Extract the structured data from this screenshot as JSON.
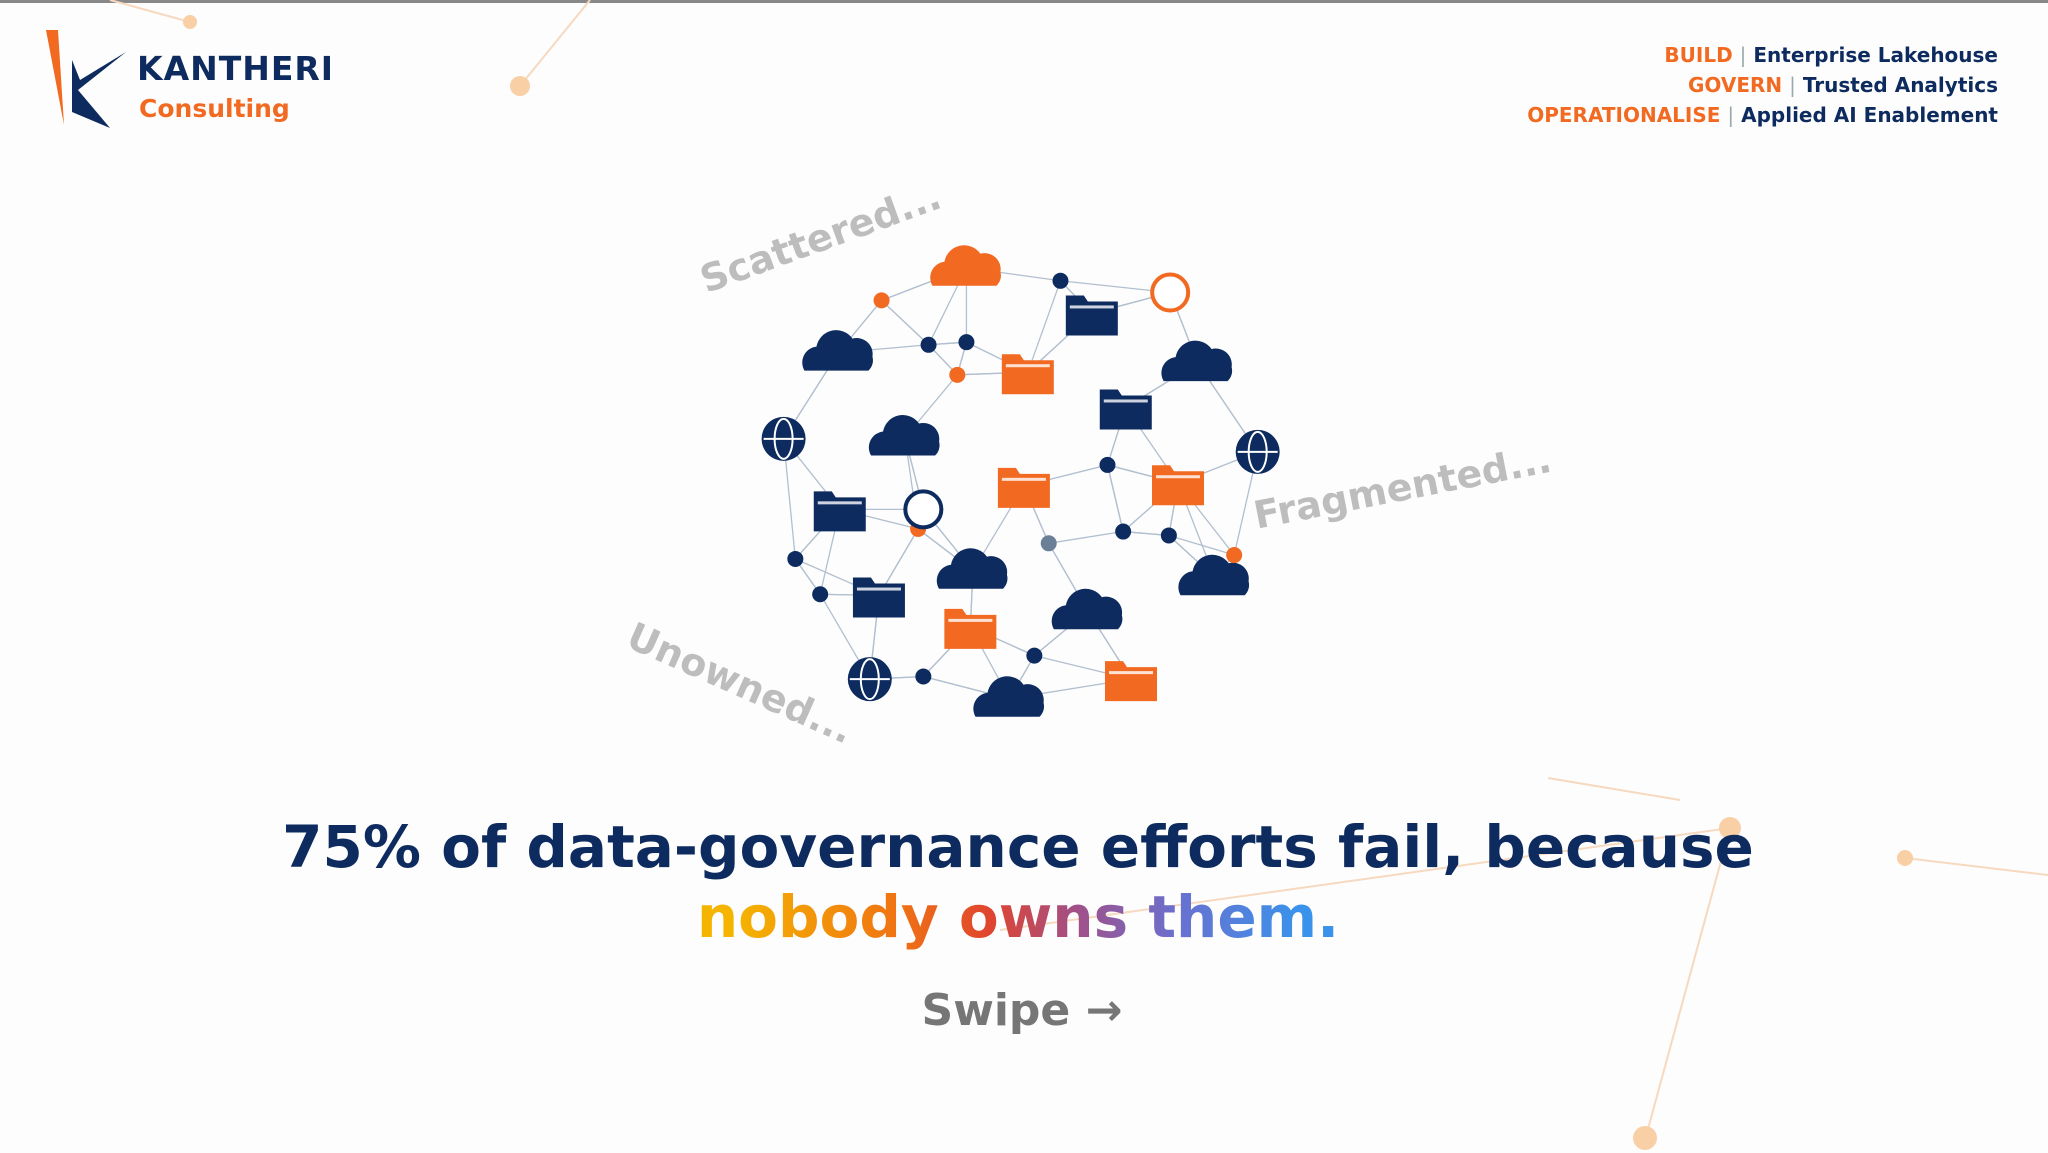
{
  "brand": {
    "name": "KANTHERI",
    "subtitle": "Consulting"
  },
  "taglines": {
    "separator": "|",
    "items": [
      {
        "key": "BUILD",
        "value": "Enterprise Lakehouse"
      },
      {
        "key": "GOVERN",
        "value": "Trusted Analytics"
      },
      {
        "key": "OPERATIONALISE",
        "value": "Applied AI Enablement"
      }
    ]
  },
  "illustration": {
    "labels": [
      "Scattered...",
      "Fragmented...",
      "Unowned..."
    ]
  },
  "headline": {
    "line1": "75% of data-governance efforts fail, because",
    "line2": [
      "nobody",
      "owns",
      "them."
    ]
  },
  "cta": "Swipe →"
}
